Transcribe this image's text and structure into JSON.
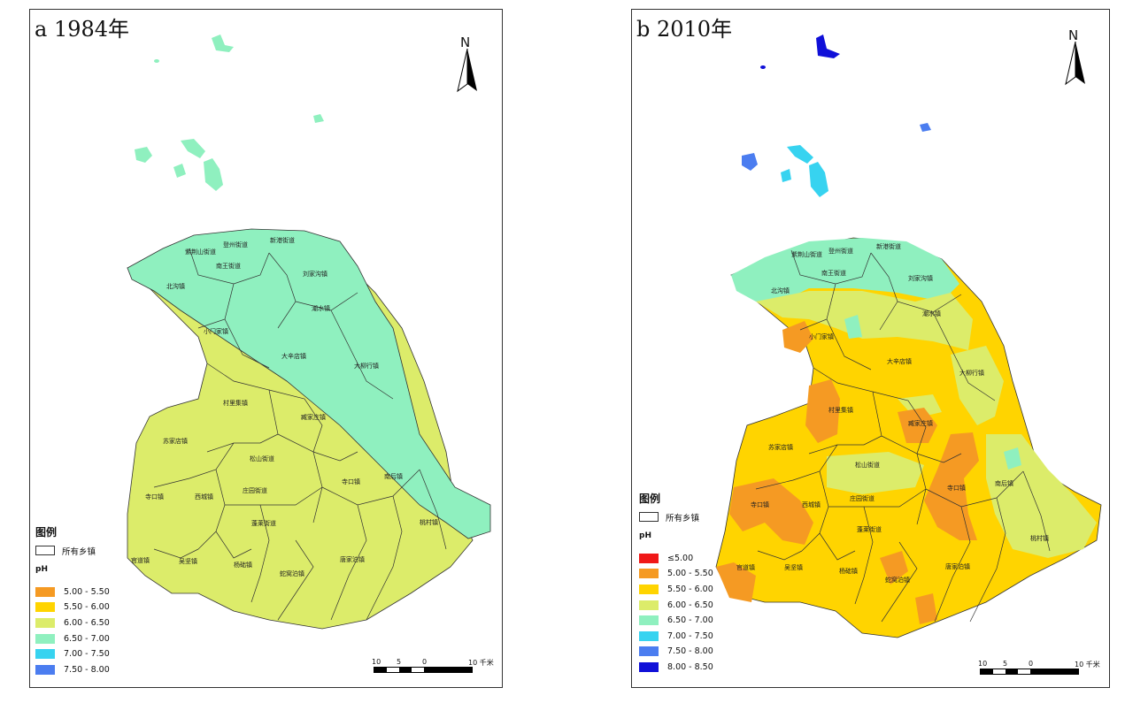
{
  "panels": [
    {
      "title": "a  1984年",
      "north": "N",
      "legend_title": "图例",
      "boundary_label": "所有乡镇",
      "ph_label": "pH",
      "classes": [
        {
          "label": "5.00 - 5.50",
          "color": "#f59a23"
        },
        {
          "label": "5.50 - 6.00",
          "color": "#ffd400"
        },
        {
          "label": "6.00 - 6.50",
          "color": "#dcec6a"
        },
        {
          "label": "6.50 - 7.00",
          "color": "#8ff0bf"
        },
        {
          "label": "7.00 - 7.50",
          "color": "#37d3f0"
        },
        {
          "label": "7.50 - 8.00",
          "color": "#4b7df0"
        }
      ],
      "scale": {
        "ticks": [
          "10",
          "5",
          "0",
          "10 千米"
        ]
      },
      "towns": [
        "紫荆山街道",
        "登州街道",
        "新港街道",
        "南王街道",
        "刘家沟镇",
        "北沟镇",
        "潮水镇",
        "小门家镇",
        "大辛店镇",
        "大柳行镇",
        "村里集镇",
        "臧家庄镇",
        "苏家店镇",
        "松山街道",
        "庄园街道",
        "寺口镇",
        "西城镇",
        "蓬莱街道",
        "南王乡",
        "官道镇",
        "吴坚镇",
        "杨础镇",
        "蛇窝泊镇",
        "唐家泊镇",
        "桃村镇",
        "南后镇"
      ]
    },
    {
      "title": "b  2010年",
      "north": "N",
      "legend_title": "图例",
      "boundary_label": "所有乡镇",
      "ph_label": "pH",
      "classes": [
        {
          "label": "≤5.00",
          "color": "#f01818"
        },
        {
          "label": "5.00 - 5.50",
          "color": "#f59a23"
        },
        {
          "label": "5.50 - 6.00",
          "color": "#ffd400"
        },
        {
          "label": "6.00 - 6.50",
          "color": "#dcec6a"
        },
        {
          "label": "6.50 - 7.00",
          "color": "#8ff0bf"
        },
        {
          "label": "7.00 - 7.50",
          "color": "#37d3f0"
        },
        {
          "label": "7.50 - 8.00",
          "color": "#4b7df0"
        },
        {
          "label": "8.00 - 8.50",
          "color": "#1010d8"
        }
      ],
      "scale": {
        "ticks": [
          "10",
          "5",
          "0",
          "10 千米"
        ]
      }
    }
  ]
}
